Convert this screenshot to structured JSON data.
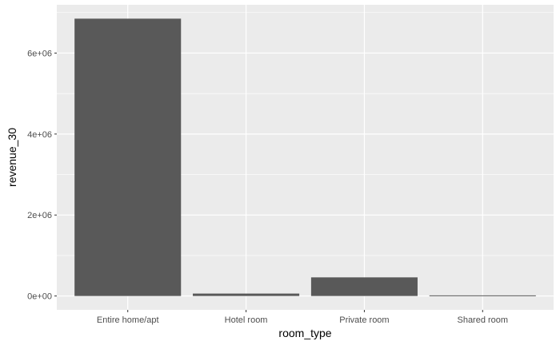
{
  "chart_data": {
    "type": "bar",
    "categories": [
      "Entire home/apt",
      "Hotel room",
      "Private room",
      "Shared room"
    ],
    "values": [
      6850000,
      60000,
      460000,
      15000
    ],
    "xlabel": "room_type",
    "ylabel": "revenue_30",
    "ylim": [
      0,
      7000000
    ],
    "yticks": [
      0,
      2000000,
      4000000,
      6000000
    ],
    "ytick_labels": [
      "0e+00",
      "2e+06",
      "4e+06",
      "6e+06"
    ],
    "grid": true,
    "legend": "none",
    "colors": {
      "panel": "#ebebeb",
      "grid_major": "#ffffff",
      "bar": "#595959",
      "tick": "#333333"
    }
  }
}
